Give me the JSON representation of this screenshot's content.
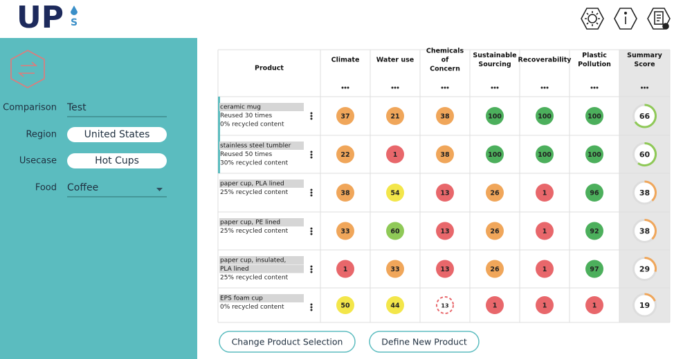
{
  "header": {
    "logo": "UP",
    "logo_sub": "S"
  },
  "sidebar": {
    "fields": [
      {
        "label": "Comparison",
        "value": "Test",
        "kind": "text"
      },
      {
        "label": "Region",
        "value": "United States",
        "kind": "pill"
      },
      {
        "label": "Usecase",
        "value": "Hot Cups",
        "kind": "pill"
      },
      {
        "label": "Food",
        "value": "Coffee",
        "kind": "select"
      }
    ]
  },
  "table": {
    "columns": [
      [
        "Product"
      ],
      [
        "Climate"
      ],
      [
        "Water use"
      ],
      [
        "Chemicals",
        "of",
        "Concern"
      ],
      [
        "Sustainable",
        "Sourcing"
      ],
      [
        "Recoverability"
      ],
      [
        "Plastic",
        "Pollution"
      ],
      [
        "Summary",
        "Score"
      ]
    ],
    "rows": [
      {
        "name": [
          "ceramic mug"
        ],
        "details": [
          "Reused 30 times",
          "0% recycled content"
        ],
        "selected": true,
        "scores": [
          37,
          21,
          38,
          100,
          100,
          100
        ],
        "summary": 66
      },
      {
        "name": [
          "stainless steel tumbler"
        ],
        "details": [
          "Reused 50 times",
          "30% recycled content"
        ],
        "selected": true,
        "scores": [
          22,
          1,
          38,
          100,
          100,
          100
        ],
        "summary": 60
      },
      {
        "name": [
          "paper cup, PLA lined"
        ],
        "details": [
          "25% recycled content"
        ],
        "selected": false,
        "scores": [
          38,
          54,
          13,
          26,
          1,
          96
        ],
        "summary": 38
      },
      {
        "name": [
          "paper cup, PE lined"
        ],
        "details": [
          "25% recycled content"
        ],
        "selected": false,
        "scores": [
          33,
          60,
          13,
          26,
          1,
          92
        ],
        "summary": 38
      },
      {
        "name": [
          "paper cup, insulated,",
          "PLA lined"
        ],
        "details": [
          "25% recycled content"
        ],
        "selected": false,
        "scores": [
          1,
          33,
          13,
          26,
          1,
          97
        ],
        "summary": 29
      },
      {
        "name": [
          "EPS foam cup"
        ],
        "details": [
          "0% recycled content"
        ],
        "selected": false,
        "scores": [
          50,
          44,
          {
            "value": 13,
            "border": "dashed"
          },
          1,
          1,
          1
        ],
        "summary": 19
      }
    ]
  },
  "buttons": [
    "Change Product Selection",
    "Define New Product"
  ]
}
